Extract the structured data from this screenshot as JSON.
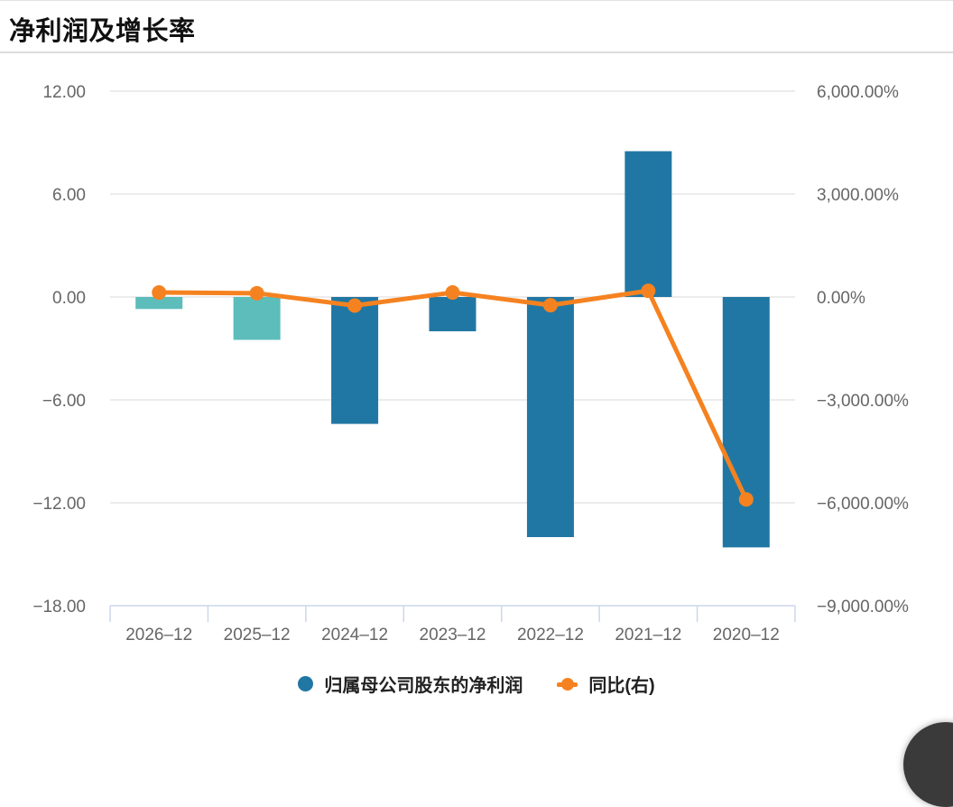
{
  "header": {
    "title": "净利润及增长率"
  },
  "chart_data": {
    "type": "bar",
    "subtype": "dual-axis bar + line",
    "title": "净利润及增长率",
    "categories": [
      "2026–12",
      "2025–12",
      "2024–12",
      "2023–12",
      "2022–12",
      "2021–12",
      "2020–12"
    ],
    "series": [
      {
        "name": "归属母公司股东的净利润",
        "type": "bar",
        "axis": "left",
        "values": [
          -0.7,
          -2.5,
          -7.4,
          -2.0,
          -14.0,
          8.5,
          -14.6
        ],
        "point_colors": [
          "#5cbdbb",
          "#5cbdbb",
          "#2177a3",
          "#2177a3",
          "#2177a3",
          "#2177a3",
          "#2177a3"
        ]
      },
      {
        "name": "同比(右)",
        "type": "line",
        "axis": "right",
        "values": [
          130,
          110,
          -250,
          130,
          -240,
          180,
          -5900
        ],
        "color": "#f58220"
      }
    ],
    "left_axis": {
      "tick_labels": [
        "12.00",
        "6.00",
        "0.00",
        "−6.00",
        "−12.00",
        "−18.00"
      ],
      "tick_values": [
        12,
        6,
        0,
        -6,
        -12,
        -18
      ],
      "min": -18,
      "max": 12
    },
    "right_axis": {
      "tick_labels": [
        "6,000.00%",
        "3,000.00%",
        "0.00%",
        "−3,000.00%",
        "−6,000.00%",
        "−9,000.00%"
      ],
      "tick_values": [
        6000,
        3000,
        0,
        -3000,
        -6000,
        -9000
      ],
      "min": -9000,
      "max": 6000
    },
    "legend": [
      {
        "label": "归属母公司股东的净利润",
        "marker": "circle",
        "color": "#2177a3"
      },
      {
        "label": "同比(右)",
        "marker": "line-dot",
        "color": "#f58220"
      }
    ],
    "legend_position": "bottom",
    "grid": true,
    "colors": {
      "bar_blue": "#2177a3",
      "bar_teal": "#5cbdbb",
      "line_orange": "#f58220",
      "gridline": "#e6e6e6",
      "axis_tick": "#ccd6eb",
      "axis_label": "#666666"
    }
  }
}
